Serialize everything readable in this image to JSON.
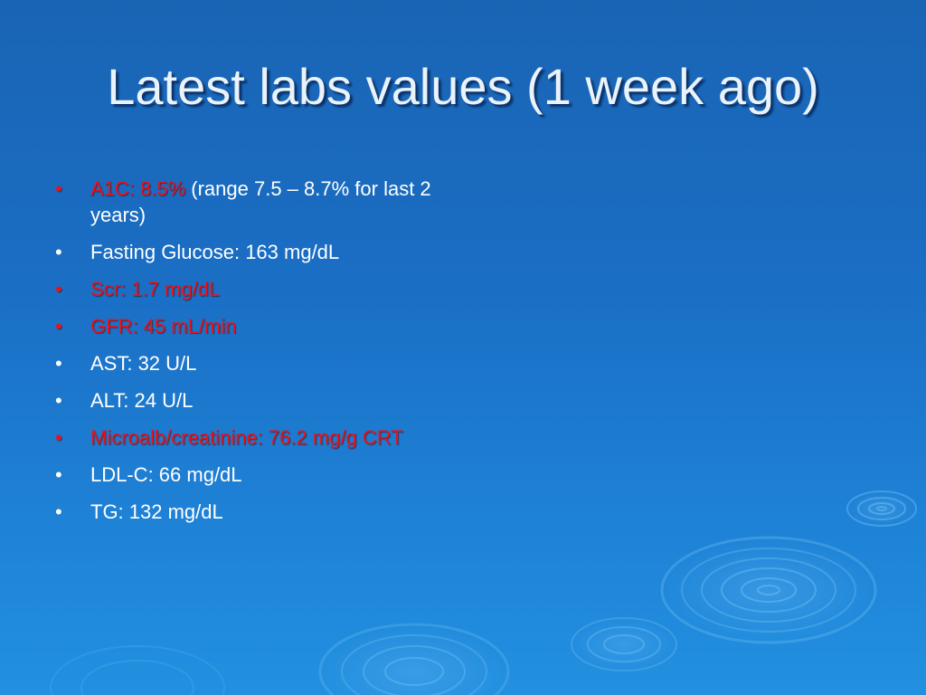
{
  "slide": {
    "title": "Latest labs values (1 week ago)",
    "bullet_glyph": "•",
    "colors": {
      "background": "#1a6ec4",
      "title": "#eaf2fa",
      "text": "#ffffff",
      "alert": "#e8141c"
    },
    "items": [
      {
        "highlight": "A1C: 8.5%",
        "rest": " (range 7.5 – 8.7% for last 2 years)"
      },
      {
        "text": "Fasting Glucose: 163 mg/dL"
      },
      {
        "text": "Scr: 1.7 mg/dL",
        "alert": true
      },
      {
        "text": "GFR: 45 mL/min",
        "alert": true
      },
      {
        "text": "AST: 32 U/L"
      },
      {
        "text": "ALT: 24 U/L"
      },
      {
        "text": "Microalb/creatinine: 76.2 mg/g CRT",
        "alert": true
      },
      {
        "text": "LDL-C: 66 mg/dL"
      },
      {
        "text": "TG: 132 mg/dL"
      }
    ]
  }
}
